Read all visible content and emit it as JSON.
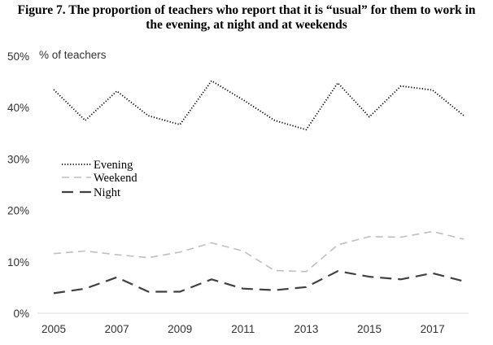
{
  "chart_data": {
    "type": "line",
    "title_lines": [
      "Figure 7. The proportion of teachers who report that it is “usual” for them to work in",
      "the evening, at night and at weekends"
    ],
    "ylabel": "% of teachers",
    "x": [
      2005,
      2006,
      2007,
      2008,
      2009,
      2010,
      2011,
      2012,
      2013,
      2014,
      2015,
      2016,
      2017,
      2018
    ],
    "xticks": [
      "2005",
      "2007",
      "2009",
      "2011",
      "2013",
      "2015",
      "2017"
    ],
    "yticks": [
      "0%",
      "10%",
      "20%",
      "30%",
      "40%",
      "50%"
    ],
    "ylim": [
      0,
      50
    ],
    "legend_position": "middle-left",
    "grid": false,
    "series": [
      {
        "name": "Evening",
        "style": "dotted",
        "color": "#000000",
        "values": [
          43.5,
          37.5,
          43.2,
          38.4,
          36.7,
          45.2,
          41.5,
          37.5,
          35.7,
          44.8,
          38.2,
          44.2,
          43.4,
          38.4
        ]
      },
      {
        "name": "Weekend",
        "style": "dashed",
        "color": "#bfbfbf",
        "values": [
          11.6,
          12.1,
          11.4,
          10.8,
          11.9,
          13.7,
          12.1,
          8.3,
          8.1,
          13.3,
          14.9,
          14.8,
          15.9,
          14.4
        ]
      },
      {
        "name": "Night",
        "style": "longdash",
        "color": "#404040",
        "values": [
          3.9,
          4.8,
          7.0,
          4.2,
          4.2,
          6.6,
          4.8,
          4.5,
          5.1,
          8.2,
          7.1,
          6.6,
          7.8,
          6.2
        ]
      }
    ]
  }
}
